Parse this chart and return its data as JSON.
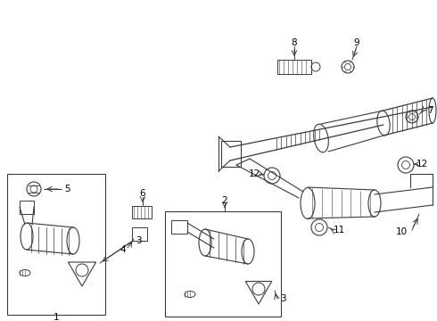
{
  "bg_color": "#ffffff",
  "line_color": "#3a3a3a",
  "label_color": "#000000",
  "fig_width": 4.9,
  "fig_height": 3.6,
  "dpi": 100
}
